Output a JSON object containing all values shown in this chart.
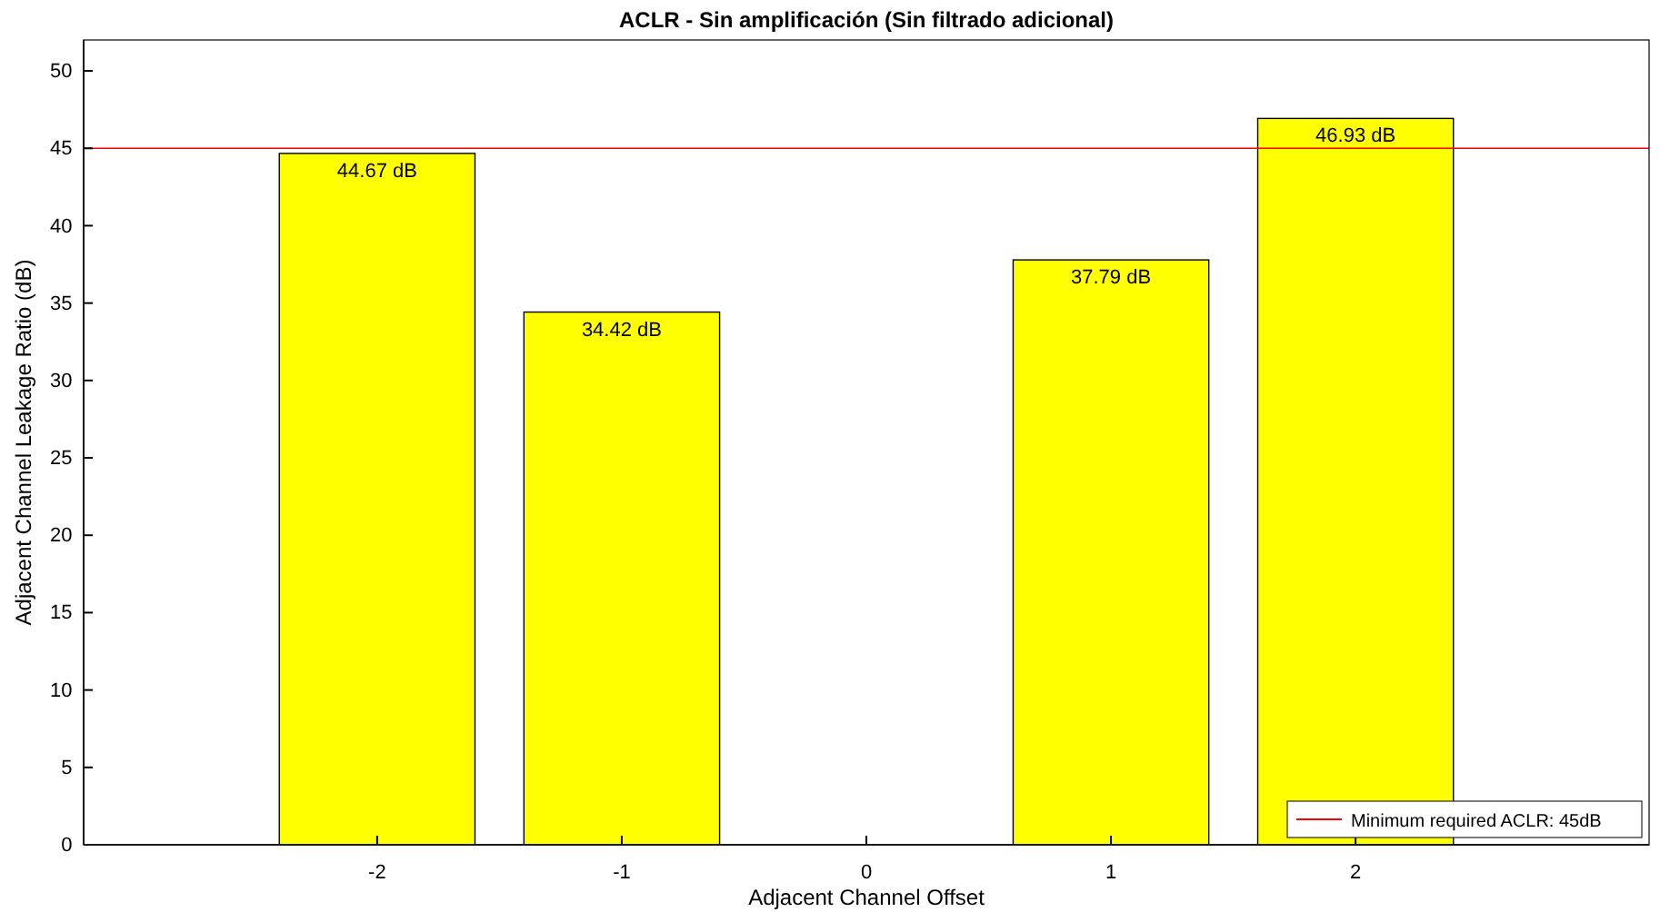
{
  "chart_data": {
    "type": "bar",
    "title": "ACLR - Sin amplificación (Sin filtrado adicional)",
    "xlabel": "Adjacent Channel Offset",
    "ylabel": "Adjacent Channel Leakage Ratio (dB)",
    "x": [
      -2,
      -1,
      0,
      1,
      2
    ],
    "values": [
      44.67,
      34.42,
      0,
      37.79,
      46.93
    ],
    "color": "#ffff00",
    "value_labels": [
      "44.67 dB",
      "34.42 dB",
      null,
      "37.79 dB",
      "46.93 dB"
    ],
    "xlim": [
      -3.2,
      3.2
    ],
    "xticks": [
      -2,
      -1,
      0,
      1,
      2
    ],
    "ylim": [
      0,
      52
    ],
    "yticks": [
      0,
      5,
      10,
      15,
      20,
      25,
      30,
      35,
      40,
      45,
      50
    ],
    "ref_lines": [
      {
        "axis": "y",
        "value": 45,
        "label": "Minimum required ACLR: 45dB",
        "color": "#ff0000"
      }
    ],
    "legend": "bottom right",
    "grid": false
  }
}
